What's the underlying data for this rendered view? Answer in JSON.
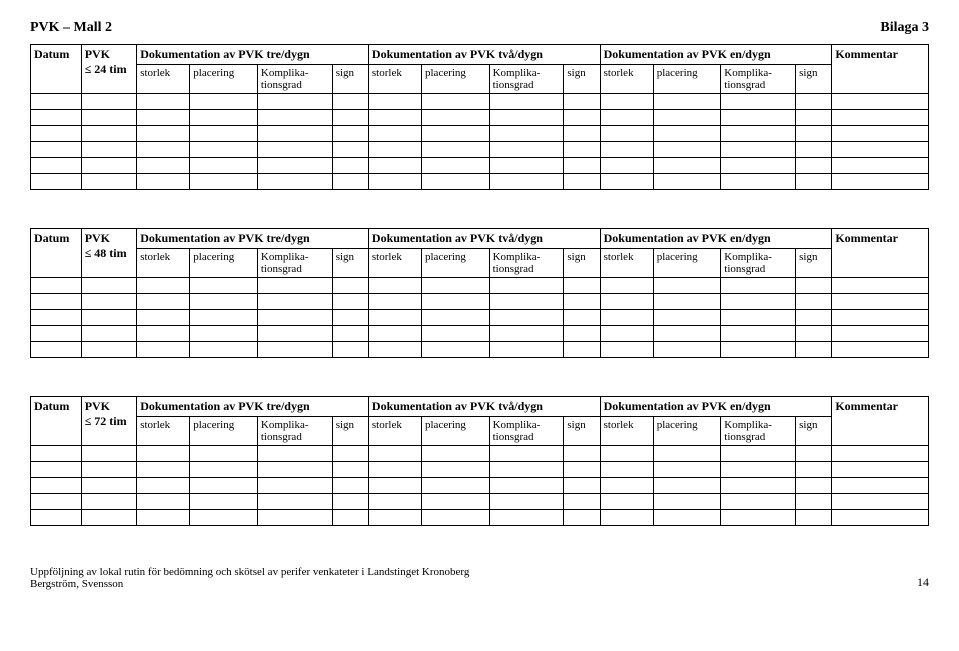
{
  "header": {
    "left": "PVK – Mall 2",
    "right": "Bilaga 3"
  },
  "labels": {
    "datum": "Datum",
    "pvk": "PVK",
    "tre": "Dokumentation av PVK tre/dygn",
    "tva": "Dokumentation av PVK två/dygn",
    "en": "Dokumentation av PVK en/dygn",
    "kommentar": "Kommentar",
    "storlek": "storlek",
    "placering": "placering",
    "komplikation": "Komplika-tionsgrad",
    "sign": "sign"
  },
  "blocks": [
    {
      "pvk_limit": "≤ 24 tim",
      "empty_rows": 6
    },
    {
      "pvk_limit": "≤ 48 tim",
      "empty_rows": 5
    },
    {
      "pvk_limit": "≤ 72 tim",
      "empty_rows": 5
    }
  ],
  "footer": {
    "line1": "Uppföljning av lokal rutin för bedömning och skötsel av perifer venkateter i Landstinget Kronoberg",
    "line2": "Bergström, Svensson",
    "page": "14"
  }
}
